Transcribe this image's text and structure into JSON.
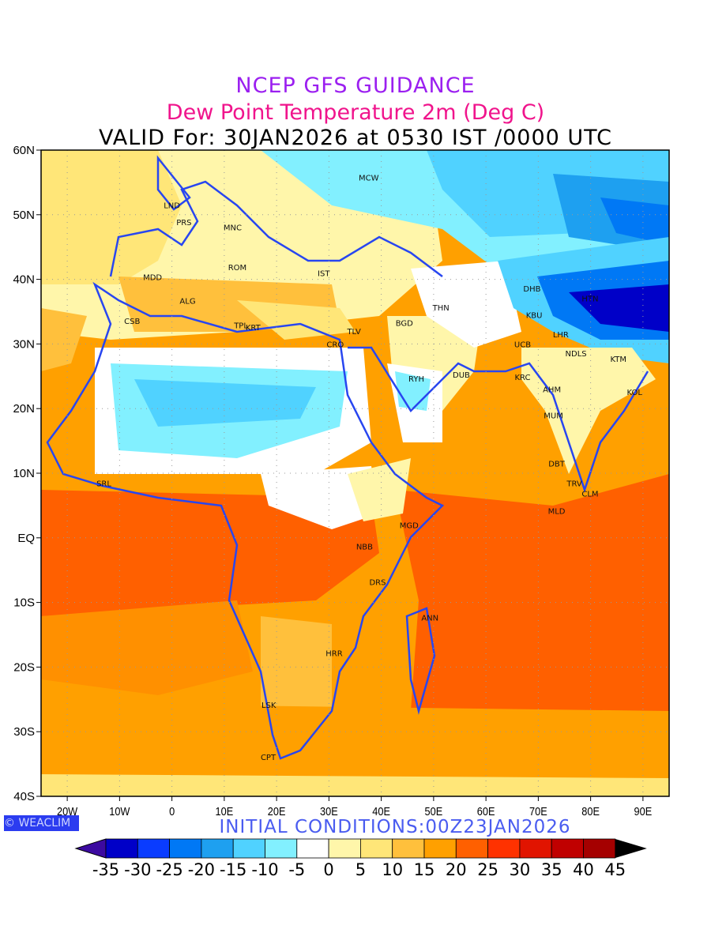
{
  "header": {
    "title": "NCEP GFS GUIDANCE",
    "subtitle": "Dew Point Temperature 2m (Deg C)",
    "valid": "VALID For: 30JAN2026 at 0530 IST /0000 UTC"
  },
  "footer": {
    "logo": "© WEACLIM",
    "initial_conditions": "INITIAL CONDITIONS:00Z23JAN2026"
  },
  "axes": {
    "lat_ticks": [
      {
        "v": 60,
        "label": "60N"
      },
      {
        "v": 50,
        "label": "50N"
      },
      {
        "v": 40,
        "label": "40N"
      },
      {
        "v": 30,
        "label": "30N"
      },
      {
        "v": 20,
        "label": "20N"
      },
      {
        "v": 10,
        "label": "10N"
      },
      {
        "v": 0,
        "label": "EQ"
      },
      {
        "v": -10,
        "label": "10S"
      },
      {
        "v": -20,
        "label": "20S"
      },
      {
        "v": -30,
        "label": "30S"
      },
      {
        "v": -40,
        "label": "40S"
      }
    ],
    "lon_ticks": [
      {
        "v": -20,
        "label": "20W"
      },
      {
        "v": -10,
        "label": "10W"
      },
      {
        "v": 0,
        "label": "0"
      },
      {
        "v": 10,
        "label": "10E"
      },
      {
        "v": 20,
        "label": "20E"
      },
      {
        "v": 30,
        "label": "30E"
      },
      {
        "v": 40,
        "label": "40E"
      },
      {
        "v": 50,
        "label": "50E"
      },
      {
        "v": 60,
        "label": "60E"
      },
      {
        "v": 70,
        "label": "70E"
      },
      {
        "v": 80,
        "label": "80E"
      },
      {
        "v": 90,
        "label": "90E"
      }
    ],
    "lon_range": [
      -25,
      95
    ],
    "lat_range": [
      -40,
      60
    ]
  },
  "colorbar": {
    "labels": [
      "-35",
      "-30",
      "-25",
      "-20",
      "-15",
      "-10",
      "-5",
      "0",
      "5",
      "10",
      "15",
      "20",
      "25",
      "30",
      "35",
      "40",
      "45"
    ],
    "colors": [
      "#0000c8",
      "#0a3cff",
      "#0078f5",
      "#1ea0f0",
      "#50d2ff",
      "#82f0ff",
      "#ffffff",
      "#fff6aa",
      "#ffe678",
      "#ffc03c",
      "#ffa000",
      "#ff6000",
      "#ff3200",
      "#e11400",
      "#c00000",
      "#a50000"
    ],
    "under_color": "#3c0aa0",
    "over_color": "#000000"
  },
  "stations": [
    {
      "code": "LND",
      "lon": 0,
      "lat": 51.5
    },
    {
      "code": "PRS",
      "lon": 2.3,
      "lat": 48.9
    },
    {
      "code": "MNC",
      "lon": 11.6,
      "lat": 48.1
    },
    {
      "code": "MCW",
      "lon": 37.6,
      "lat": 55.8
    },
    {
      "code": "ROM",
      "lon": 12.5,
      "lat": 41.9
    },
    {
      "code": "MDD",
      "lon": -3.7,
      "lat": 40.4
    },
    {
      "code": "IST",
      "lon": 29,
      "lat": 41
    },
    {
      "code": "ALG",
      "lon": 3,
      "lat": 36.7
    },
    {
      "code": "CSB",
      "lon": -7.6,
      "lat": 33.6
    },
    {
      "code": "TPL",
      "lon": 13.2,
      "lat": 32.9
    },
    {
      "code": "KRT",
      "lon": 15.5,
      "lat": 32.6
    },
    {
      "code": "CRO",
      "lon": 31.2,
      "lat": 30
    },
    {
      "code": "TLV",
      "lon": 34.8,
      "lat": 32
    },
    {
      "code": "BGD",
      "lon": 44.4,
      "lat": 33.3
    },
    {
      "code": "THN",
      "lon": 51.4,
      "lat": 35.7
    },
    {
      "code": "DHB",
      "lon": 68.8,
      "lat": 38.6
    },
    {
      "code": "HTN",
      "lon": 79.9,
      "lat": 37.1
    },
    {
      "code": "KBU",
      "lon": 69.2,
      "lat": 34.5
    },
    {
      "code": "LHR",
      "lon": 74.3,
      "lat": 31.5
    },
    {
      "code": "UCB",
      "lon": 67,
      "lat": 30
    },
    {
      "code": "NDLS",
      "lon": 77.2,
      "lat": 28.6
    },
    {
      "code": "KTM",
      "lon": 85.3,
      "lat": 27.7
    },
    {
      "code": "RYH",
      "lon": 46.7,
      "lat": 24.7
    },
    {
      "code": "DUB",
      "lon": 55.3,
      "lat": 25.3
    },
    {
      "code": "KRC",
      "lon": 67,
      "lat": 24.9
    },
    {
      "code": "AHM",
      "lon": 72.6,
      "lat": 23
    },
    {
      "code": "KOL",
      "lon": 88.4,
      "lat": 22.6
    },
    {
      "code": "MUM",
      "lon": 72.9,
      "lat": 19
    },
    {
      "code": "DBT",
      "lon": 73.5,
      "lat": 11.5
    },
    {
      "code": "TRV",
      "lon": 76.9,
      "lat": 8.5
    },
    {
      "code": "CLM",
      "lon": 79.9,
      "lat": 6.9
    },
    {
      "code": "MLD",
      "lon": 73.5,
      "lat": 4.2
    },
    {
      "code": "SRL",
      "lon": -13,
      "lat": 8.5
    },
    {
      "code": "MGD",
      "lon": 45.3,
      "lat": 2
    },
    {
      "code": "NBB",
      "lon": 36.8,
      "lat": -1.3
    },
    {
      "code": "DRS",
      "lon": 39.3,
      "lat": -6.8
    },
    {
      "code": "ANN",
      "lon": 49.3,
      "lat": -12.3
    },
    {
      "code": "HRR",
      "lon": 31,
      "lat": -17.8
    },
    {
      "code": "LSK",
      "lon": 18.5,
      "lat": -25.8
    },
    {
      "code": "CPT",
      "lon": 18.4,
      "lat": -33.9
    }
  ]
}
